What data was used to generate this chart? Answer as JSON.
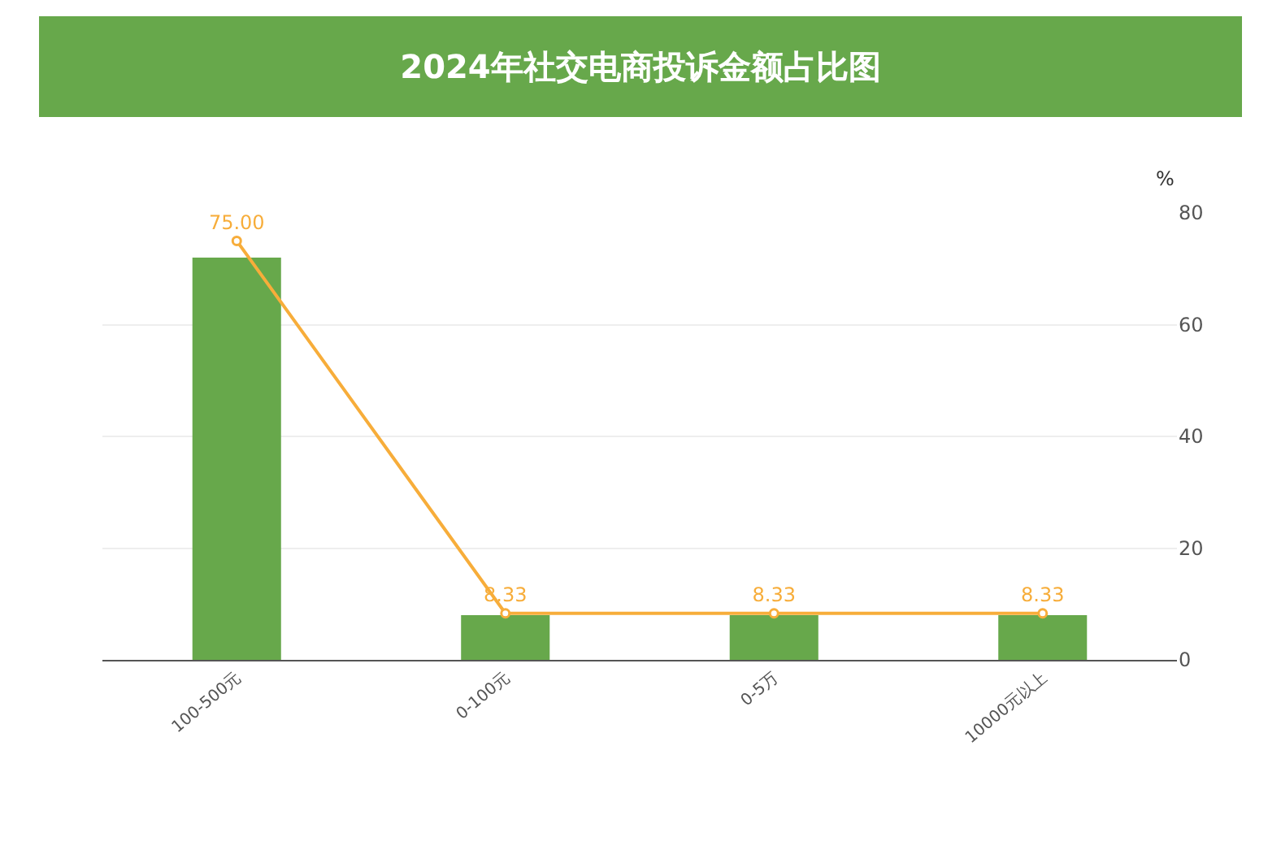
{
  "chart_data": {
    "type": "bar",
    "title": "2024年社交电商投诉金额占比图",
    "ylabel": "%",
    "categories": [
      "100-500元",
      "0-100元",
      "0-5万",
      "10000元以上"
    ],
    "series": [
      {
        "color": "#67a84b",
        "values": [
          72,
          8,
          8,
          8
        ]
      },
      {
        "type": "line",
        "color": "#f7ad3a",
        "values": [
          75,
          8.33,
          8.33,
          8.33
        ],
        "value_labels": [
          "75.00",
          "8.33",
          "8.33",
          "8.33"
        ]
      }
    ],
    "ylim": [
      0,
      80
    ],
    "yticks": [
      0,
      20,
      40,
      60,
      80
    ],
    "grid": "y",
    "marker": "circle",
    "line_style": "solid"
  }
}
